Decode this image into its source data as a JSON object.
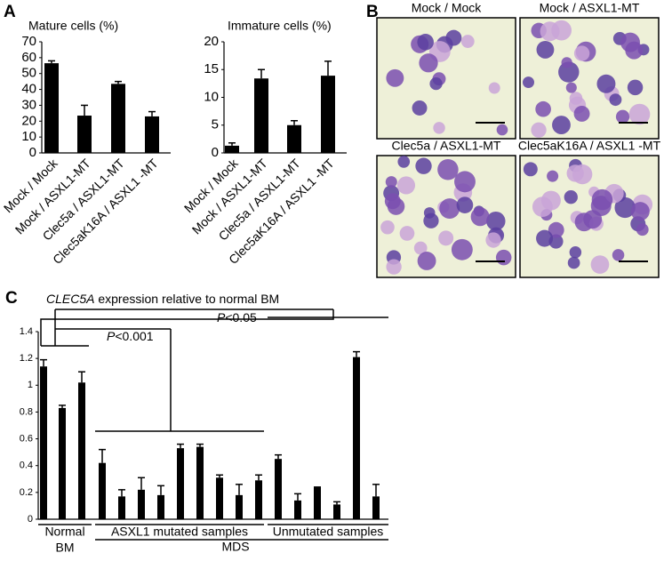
{
  "panels": [
    "A",
    "B",
    "C"
  ],
  "micrographs": [
    "Mock / Mock",
    "Mock / ASXL1-MT",
    "Clec5a / ASXL1-MT",
    "Clec5aK16A  / ASXL1 -MT"
  ],
  "chart_data": [
    {
      "type": "bar",
      "title": "Mature cells (%)",
      "categories": [
        "Mock / Mock",
        "Mock / ASXL1-MT",
        "Clec5a / ASXL1-MT",
        "Clec5aK16A / ASXL1 -MT"
      ],
      "values": [
        56.5,
        23.5,
        43.5,
        23
      ],
      "errors": [
        1.5,
        6.5,
        1.5,
        3
      ],
      "color": "#000000",
      "ylim": [
        0,
        70
      ],
      "yticks": [
        0,
        10,
        20,
        30,
        40,
        50,
        60,
        70
      ]
    },
    {
      "type": "bar",
      "title": "Immature cells (%)",
      "categories": [
        "Mock / Mock",
        "Mock / ASXL1-MT",
        "Clec5a / ASXL1-MT",
        "Clec5aK16A / ASXL1 -MT"
      ],
      "values": [
        1.3,
        13.4,
        5,
        13.9
      ],
      "errors": [
        0.5,
        1.6,
        0.8,
        2.6
      ],
      "color": "#000000",
      "ylim": [
        0,
        20
      ],
      "yticks": [
        0,
        5,
        10,
        15,
        20
      ]
    },
    {
      "type": "bar",
      "title_italic": "CLEC5A",
      "title": " expression relative to normal BM",
      "categories": [
        null,
        null,
        null,
        null,
        null,
        null,
        null,
        null,
        null,
        null,
        null,
        null,
        null,
        null,
        null,
        null,
        null,
        null
      ],
      "values": [
        1.14,
        0.83,
        1.02,
        0.42,
        0.17,
        0.22,
        0.18,
        0.53,
        0.54,
        0.31,
        0.18,
        0.29,
        0.45,
        0.14,
        0.24,
        0.11,
        1.21,
        0.17
      ],
      "errors": [
        0.05,
        0.02,
        0.08,
        0.1,
        0.05,
        0.09,
        0.07,
        0.03,
        0.02,
        0.02,
        0.08,
        0.04,
        0.03,
        0.05,
        0.0,
        0.02,
        0.04,
        0.09
      ],
      "color": "#000000",
      "ylim": [
        0,
        1.4
      ],
      "yticks": [
        0,
        0.2,
        0.4,
        0.6,
        0.8,
        1,
        1.2,
        1.4
      ],
      "groups": [
        [
          "Normal",
          "BM"
        ],
        [
          "ASXL1 mutated samples"
        ],
        [
          "Unmutated samples"
        ]
      ],
      "supergroup": "MDS",
      "annotations": [
        {
          "italic": "P",
          "text": "<0.001"
        },
        {
          "italic": "P",
          "text": "<0.05"
        }
      ]
    }
  ]
}
